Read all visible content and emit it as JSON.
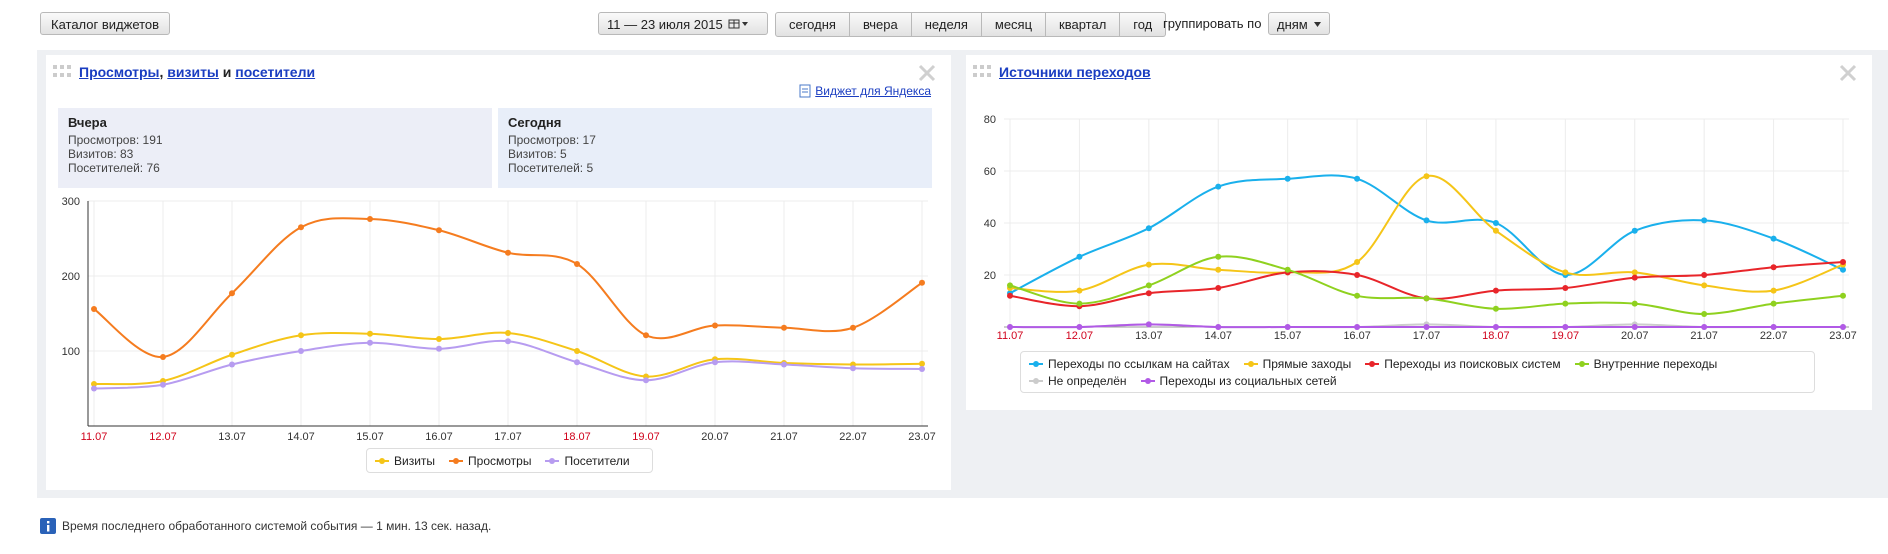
{
  "toolbar": {
    "catalog_button": "Каталог виджетов",
    "date_range": "11 — 23 июля 2015",
    "periods": [
      "сегодня",
      "вчера",
      "неделя",
      "месяц",
      "квартал",
      "год"
    ],
    "group_label": "группировать по",
    "group_value": "дням"
  },
  "widgets": [
    {
      "title_parts": [
        "Просмотры",
        ",",
        "визиты",
        "и",
        "посетители"
      ],
      "link": "Виджет для Яндекса",
      "summary": [
        {
          "heading": "Вчера",
          "rows": [
            {
              "label": "Просмотров:",
              "value": 191
            },
            {
              "label": "Визитов:",
              "value": 83
            },
            {
              "label": "Посетителей:",
              "value": 76
            }
          ]
        },
        {
          "heading": "Сегодня",
          "rows": [
            {
              "label": "Просмотров:",
              "value": 17
            },
            {
              "label": "Визитов:",
              "value": 5
            },
            {
              "label": "Посетителей:",
              "value": 5
            }
          ]
        }
      ]
    },
    {
      "title": "Источники переходов"
    }
  ],
  "chart_data": [
    {
      "type": "line",
      "categories": [
        "11.07",
        "12.07",
        "13.07",
        "14.07",
        "15.07",
        "16.07",
        "17.07",
        "18.07",
        "19.07",
        "20.07",
        "21.07",
        "22.07",
        "23.07"
      ],
      "category_colors": [
        "#d0021b",
        "#d0021b",
        "#333333",
        "#333333",
        "#333333",
        "#333333",
        "#333333",
        "#d0021b",
        "#d0021b",
        "#333333",
        "#333333",
        "#333333",
        "#333333"
      ],
      "ylim": [
        0,
        300
      ],
      "yticks": [
        100,
        200,
        300
      ],
      "grid": true,
      "axis_lines": true,
      "series": [
        {
          "name": "Визиты",
          "color": "#f5c518",
          "values": [
            56,
            60,
            95,
            121,
            123,
            116,
            124,
            100,
            66,
            89,
            84,
            82,
            83
          ]
        },
        {
          "name": "Просмотры",
          "color": "#f57c1f",
          "values": [
            156,
            92,
            177,
            265,
            276,
            261,
            231,
            216,
            121,
            134,
            131,
            131,
            191
          ]
        },
        {
          "name": "Посетители",
          "color": "#b79cf0",
          "values": [
            50,
            55,
            82,
            100,
            111,
            103,
            113,
            85,
            61,
            85,
            82,
            77,
            76
          ]
        }
      ]
    },
    {
      "type": "line",
      "categories": [
        "11.07",
        "12.07",
        "13.07",
        "14.07",
        "15.07",
        "16.07",
        "17.07",
        "18.07",
        "19.07",
        "20.07",
        "21.07",
        "22.07",
        "23.07"
      ],
      "category_colors": [
        "#d0021b",
        "#d0021b",
        "#333333",
        "#333333",
        "#333333",
        "#333333",
        "#333333",
        "#d0021b",
        "#d0021b",
        "#333333",
        "#333333",
        "#333333",
        "#333333"
      ],
      "ylim": [
        0,
        80
      ],
      "yticks": [
        20,
        40,
        60,
        80
      ],
      "grid": true,
      "axis_lines": false,
      "series": [
        {
          "name": "Переходы по ссылкам на сайтах",
          "color": "#1ab0ec",
          "values": [
            13,
            27,
            38,
            54,
            57,
            57,
            41,
            40,
            20,
            37,
            41,
            34,
            22
          ]
        },
        {
          "name": "Прямые заходы",
          "color": "#f5c518",
          "values": [
            15,
            14,
            24,
            22,
            21,
            25,
            58,
            37,
            21,
            21,
            16,
            14,
            24
          ]
        },
        {
          "name": "Переходы из поисковых систем",
          "color": "#e8252a",
          "values": [
            12,
            8,
            13,
            15,
            21,
            20,
            11,
            14,
            15,
            19,
            20,
            23,
            25
          ]
        },
        {
          "name": "Внутренние переходы",
          "color": "#8fd11f",
          "values": [
            16,
            9,
            16,
            27,
            22,
            12,
            11,
            7,
            9,
            9,
            5,
            9,
            12
          ]
        },
        {
          "name": "Не определён",
          "color": "#cccccc",
          "values": [
            0,
            0,
            1,
            0,
            0,
            0,
            1,
            0,
            0,
            1,
            0,
            0,
            0
          ]
        },
        {
          "name": "Переходы из социальных сетей",
          "color": "#b15ae6",
          "values": [
            0,
            0,
            1,
            0,
            0,
            0,
            0,
            0,
            0,
            0,
            0,
            0,
            0
          ]
        }
      ]
    }
  ],
  "footer": "Время последнего обработанного системой события — 1 мин. 13 сек. назад."
}
